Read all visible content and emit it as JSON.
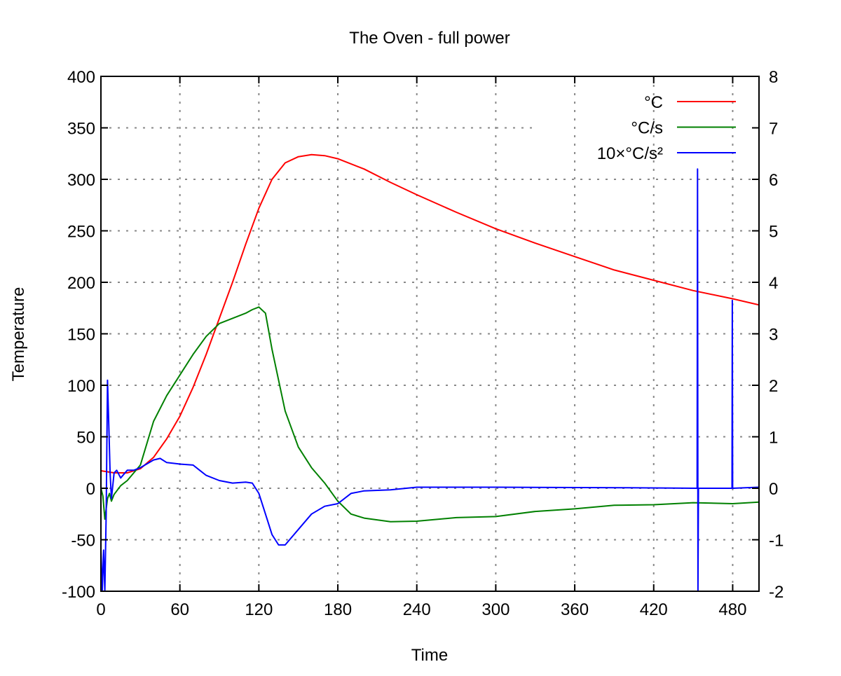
{
  "chart_data": {
    "type": "line",
    "title": "The Oven - full power",
    "xlabel": "Time",
    "ylabel": "Temperature",
    "y2label": "",
    "xlim": [
      0,
      500
    ],
    "ylim": [
      -100,
      400
    ],
    "y2lim": [
      -2,
      8
    ],
    "xticks": [
      0,
      60,
      120,
      180,
      240,
      300,
      360,
      420,
      480
    ],
    "yticks": [
      -100,
      -50,
      0,
      50,
      100,
      150,
      200,
      250,
      300,
      350,
      400
    ],
    "y2ticks": [
      -2,
      -1,
      0,
      1,
      2,
      3,
      4,
      5,
      6,
      7,
      8
    ],
    "grid": true,
    "legend_position": "top-right",
    "series": [
      {
        "name": "°C",
        "color": "#ff0000",
        "axis": "y1",
        "x": [
          0,
          10,
          20,
          30,
          40,
          50,
          60,
          70,
          80,
          90,
          100,
          110,
          120,
          130,
          140,
          150,
          160,
          170,
          180,
          200,
          220,
          240,
          270,
          300,
          330,
          360,
          390,
          420,
          450,
          480,
          500
        ],
        "y": [
          17,
          15,
          15,
          19,
          30,
          48,
          70,
          98,
          130,
          165,
          200,
          237,
          272,
          300,
          316,
          322,
          324,
          323,
          320,
          310,
          297,
          285,
          268,
          252,
          238,
          225,
          212,
          202,
          192,
          184,
          178
        ]
      },
      {
        "name": "°C/s",
        "color": "#008000",
        "axis": "y2",
        "x": [
          0,
          1.5,
          3,
          5,
          6.5,
          8,
          10,
          15,
          20,
          30,
          40,
          50,
          60,
          70,
          80,
          90,
          100,
          110,
          115,
          120,
          125,
          130,
          135,
          140,
          150,
          160,
          170,
          180,
          190,
          200,
          220,
          240,
          270,
          300,
          330,
          360,
          390,
          420,
          450,
          480,
          500
        ],
        "y": [
          0,
          -0.15,
          -0.6,
          -0.2,
          -0.1,
          -0.25,
          -0.12,
          0.05,
          0.15,
          0.45,
          1.3,
          1.8,
          2.2,
          2.6,
          2.95,
          3.2,
          3.3,
          3.4,
          3.47,
          3.52,
          3.4,
          2.7,
          2.1,
          1.5,
          0.8,
          0.4,
          0.1,
          -0.25,
          -0.5,
          -0.58,
          -0.65,
          -0.64,
          -0.57,
          -0.55,
          -0.45,
          -0.4,
          -0.33,
          -0.32,
          -0.28,
          -0.3,
          -0.27
        ]
      },
      {
        "name": "10×°C/s²",
        "color": "#0000ff",
        "axis": "y2",
        "x": [
          0,
          1,
          2,
          3,
          4,
          5,
          6,
          7,
          8,
          10,
          12,
          15,
          20,
          25,
          30,
          40,
          45,
          50,
          60,
          70,
          75,
          80,
          90,
          100,
          110,
          115,
          120,
          125,
          130,
          135,
          140,
          150,
          160,
          170,
          180,
          190,
          200,
          220,
          240,
          300,
          400,
          453,
          453.3,
          453.6,
          454,
          479.5,
          479.7,
          480,
          500
        ],
        "y": [
          -1.2,
          -2,
          -1.2,
          -2,
          -0.5,
          2.1,
          1.2,
          0.3,
          -0.2,
          0.3,
          0.35,
          0.2,
          0.35,
          0.35,
          0.4,
          0.55,
          0.58,
          0.5,
          0.47,
          0.45,
          0.35,
          0.25,
          0.15,
          0.1,
          0.12,
          0.1,
          -0.1,
          -0.5,
          -0.9,
          -1.1,
          -1.1,
          -0.8,
          -0.5,
          -0.35,
          -0.3,
          -0.1,
          -0.05,
          -0.03,
          0.02,
          0.02,
          0.01,
          0,
          6.2,
          -2,
          0,
          0,
          3.65,
          0,
          0.02
        ]
      }
    ]
  }
}
